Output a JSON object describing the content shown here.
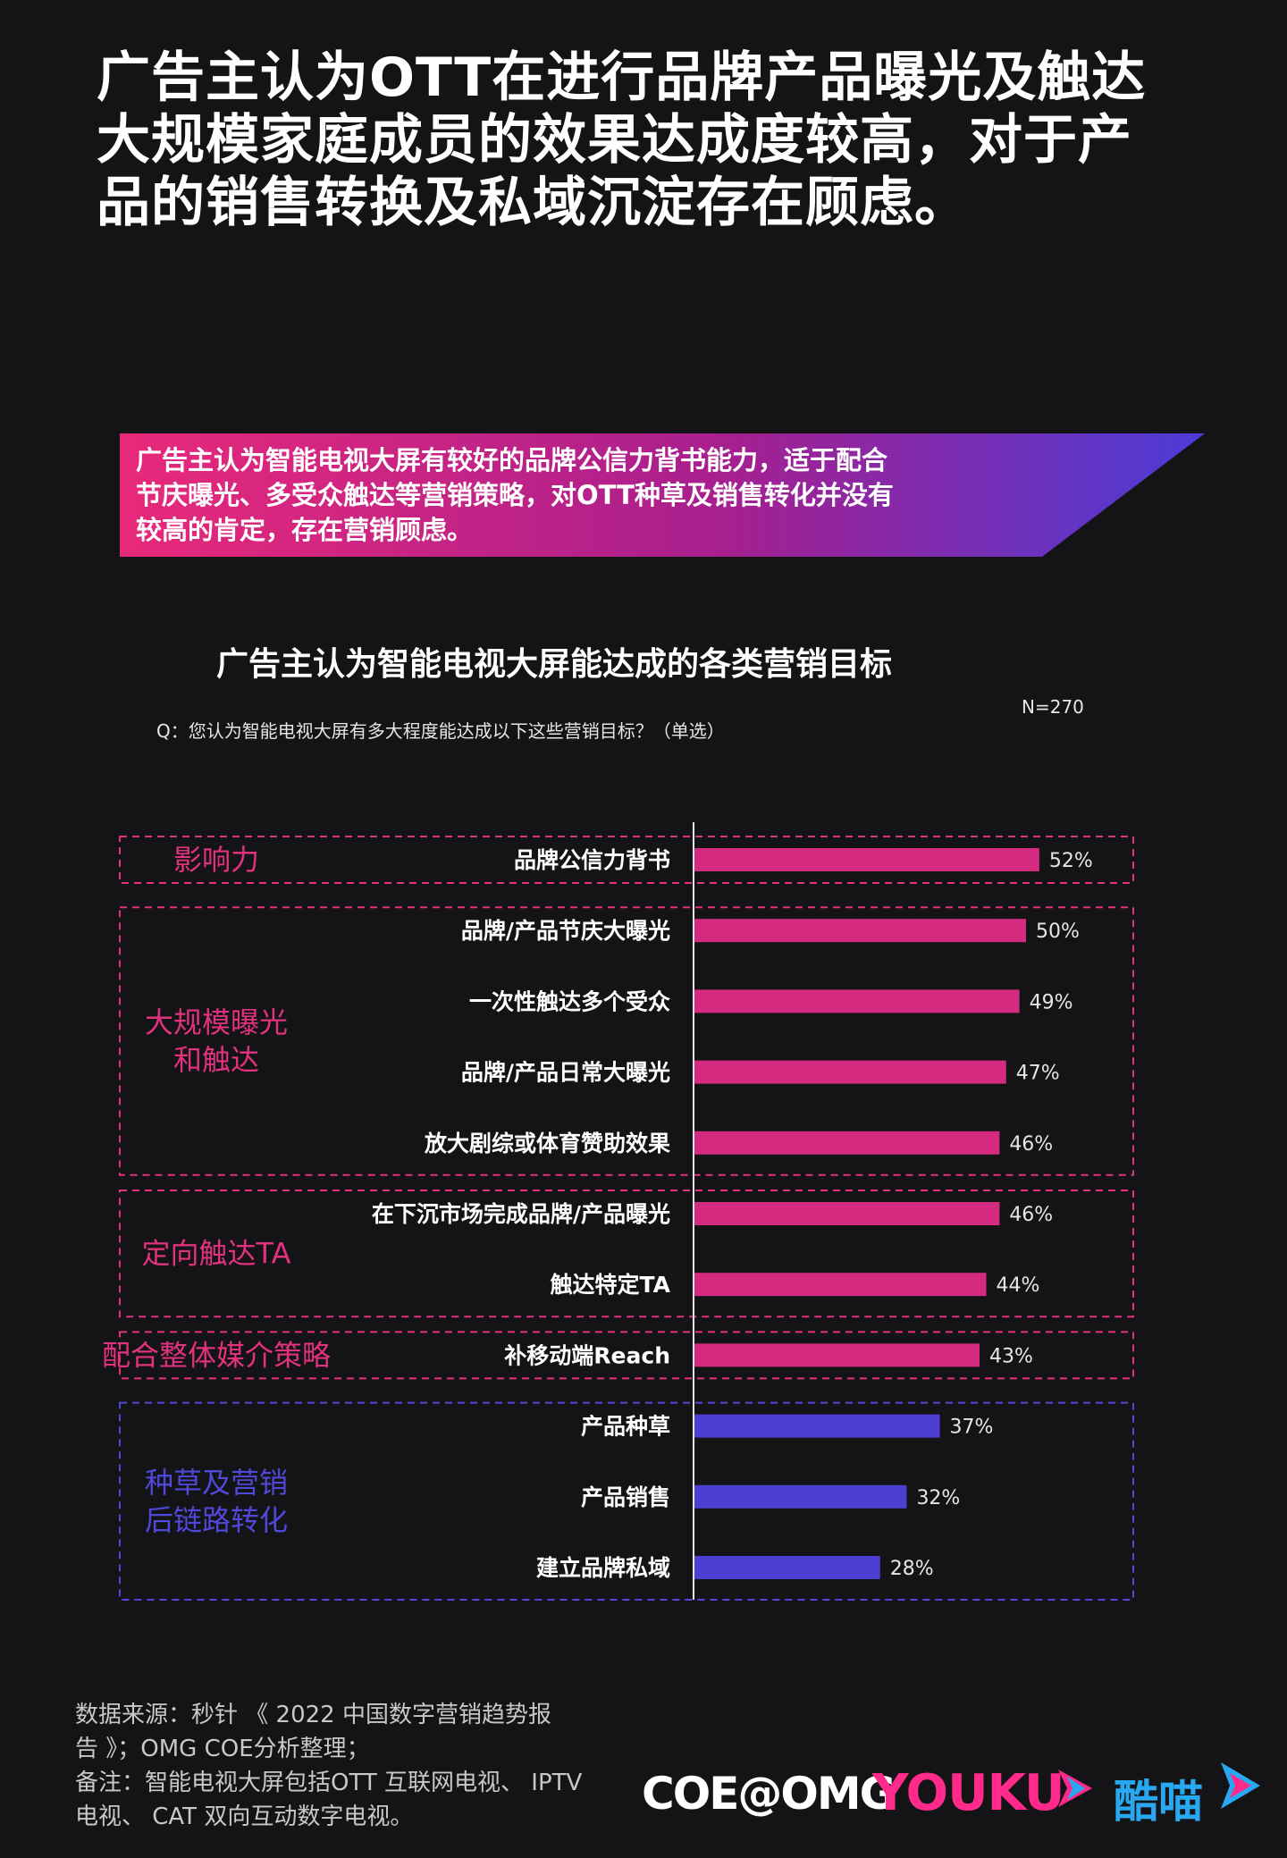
{
  "headline": [
    "广告主认为OTT在进行品牌产品曝光及触达",
    "大规模家庭成员的效果达成度较高，对于产",
    "品的销售转换及私域沉淀存在顾虑。"
  ],
  "banner": [
    "广告主认为智能电视大屏有较好的品牌公信力背书能力，适于配合",
    "节庆曝光、多受众触达等营销策略，对OTT种草及销售转化并没有",
    "较高的肯定，存在营销顾虑。"
  ],
  "chart_data": {
    "type": "bar",
    "orientation": "horizontal",
    "title": "广告主认为智能电视大屏能达成的各类营销目标",
    "question": "Q：您认为智能电视大屏有多大程度能达成以下这些营销目标？（单选）",
    "sample": "N=270",
    "unit": "%",
    "categories": [
      "品牌公信力背书",
      "品牌/产品节庆大曝光",
      "一次性触达多个受众",
      "品牌/产品日常大曝光",
      "放大剧综或体育赞助效果",
      "在下沉市场完成品牌/产品曝光",
      "触达特定TA",
      "补移动端Reach",
      "产品种草",
      "产品销售",
      "建立品牌私域"
    ],
    "values": [
      52,
      50,
      49,
      47,
      46,
      46,
      44,
      43,
      37,
      32,
      28
    ],
    "value_labels": [
      "52%",
      "50%",
      "49%",
      "47%",
      "46%",
      "46%",
      "44%",
      "43%",
      "37%",
      "32%",
      "28%"
    ],
    "groups": [
      {
        "label": [
          "影响力"
        ],
        "start": 0,
        "end": 0,
        "color": "#e0327e"
      },
      {
        "label": [
          "大规模曝光",
          "和触达"
        ],
        "start": 1,
        "end": 4,
        "color": "#e0327e"
      },
      {
        "label": [
          "定向触达TA"
        ],
        "start": 5,
        "end": 6,
        "color": "#e0327e"
      },
      {
        "label": [
          "配合整体媒介策略"
        ],
        "start": 7,
        "end": 7,
        "color": "#e0327e"
      },
      {
        "label": [
          "种草及营销",
          "后链路转化"
        ],
        "start": 8,
        "end": 10,
        "color": "#5048d8"
      }
    ],
    "colors": {
      "pink": "#d42a80",
      "purple": "#4c3fd2"
    }
  },
  "footer": [
    "数据来源：秒针 《 2022 中国数字营销趋势报",
    "告 》；OMG COE分析整理；",
    "备注：智能电视大屏包括OTT 互联网电视、 IPTV",
    "电视、 CAT 双向互动数字电视。"
  ],
  "logos": {
    "coe": "COE@OMG",
    "youku": "YOUKU",
    "kumiao": "酷喵"
  }
}
